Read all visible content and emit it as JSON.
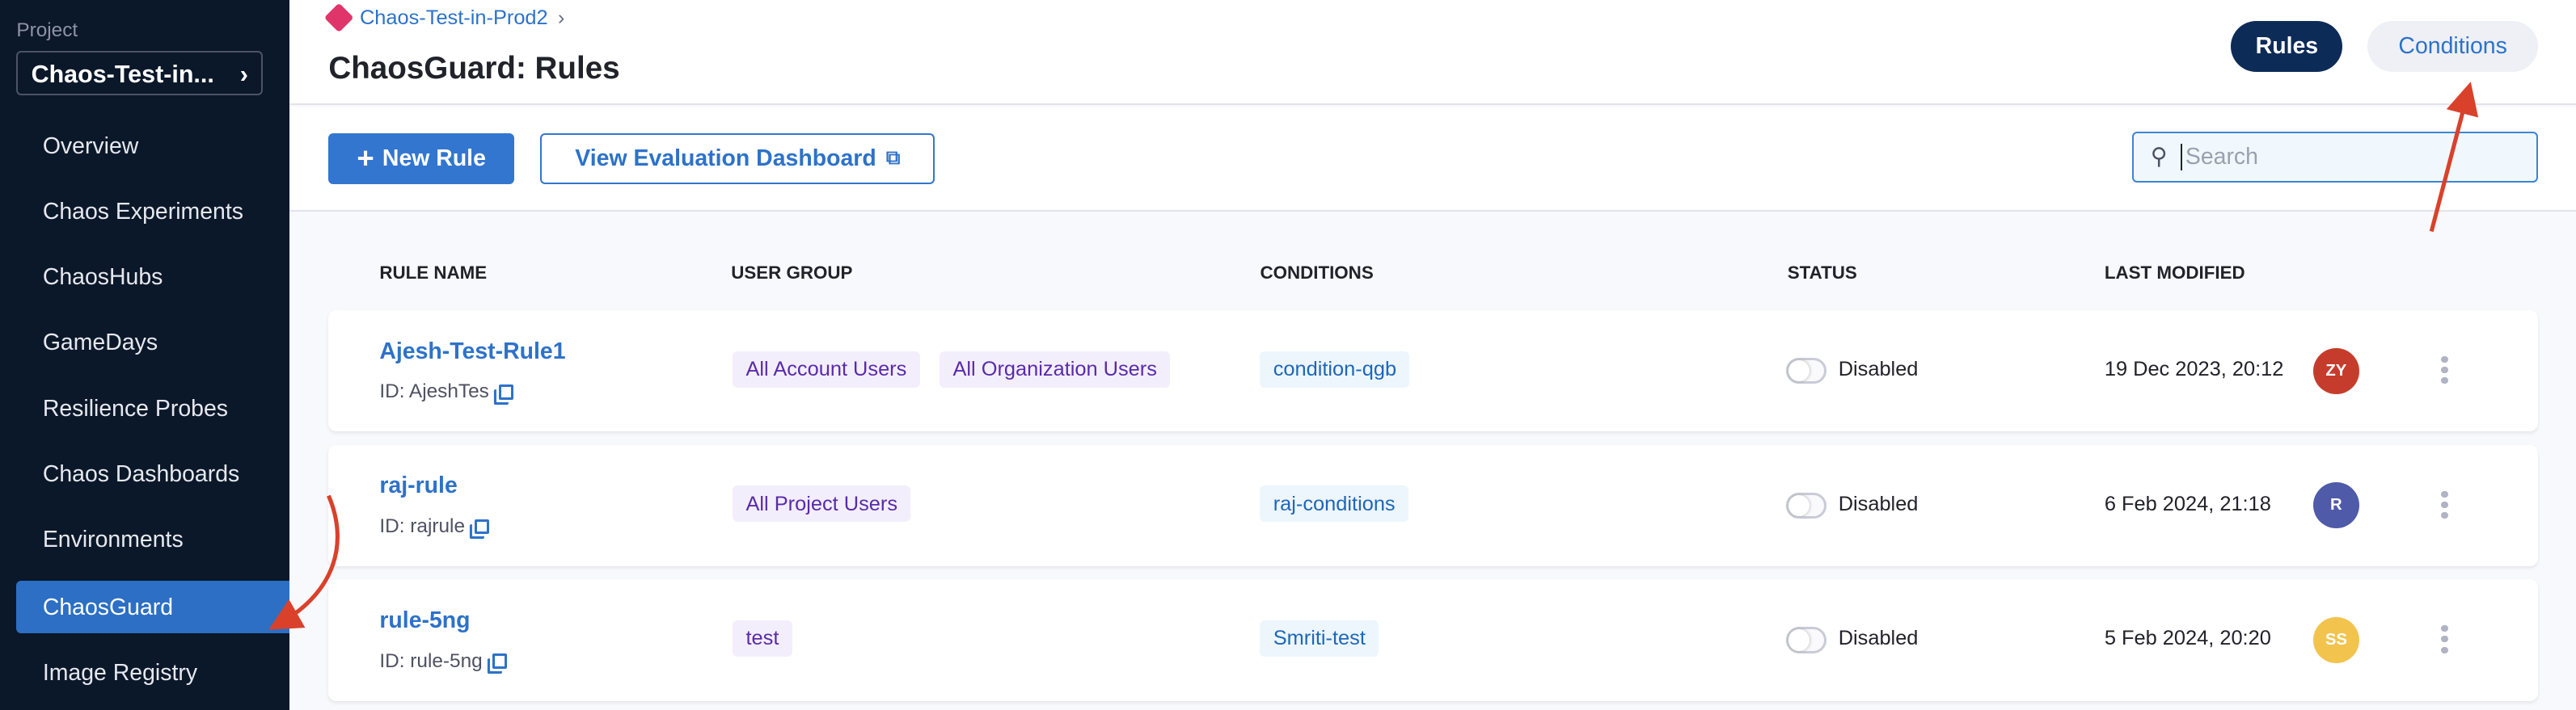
{
  "sidebar": {
    "project_label": "Project",
    "project_name": "Chaos-Test-in...",
    "items": [
      {
        "label": "Overview"
      },
      {
        "label": "Chaos Experiments"
      },
      {
        "label": "ChaosHubs"
      },
      {
        "label": "GameDays"
      },
      {
        "label": "Resilience Probes"
      },
      {
        "label": "Chaos Dashboards"
      },
      {
        "label": "Environments"
      },
      {
        "label": "ChaosGuard",
        "active": true
      },
      {
        "label": "Image Registry"
      }
    ]
  },
  "header": {
    "breadcrumb": "Chaos-Test-in-Prod2",
    "title": "ChaosGuard: Rules",
    "tabs": [
      {
        "label": "Rules",
        "active": true
      },
      {
        "label": "Conditions"
      }
    ]
  },
  "toolbar": {
    "new_rule": "New Rule",
    "view_dashboard": "View Evaluation Dashboard",
    "search_placeholder": "Search"
  },
  "table": {
    "columns": [
      "RULE NAME",
      "USER GROUP",
      "CONDITIONS",
      "STATUS",
      "LAST MODIFIED"
    ],
    "rows": [
      {
        "name": "Ajesh-Test-Rule1",
        "id": "ID: AjeshTes",
        "groups": [
          "All Account Users",
          "All Organization Users"
        ],
        "condition": "condition-qgb",
        "status": "Disabled",
        "modified": "19 Dec 2023, 20:12",
        "avatar": "ZY",
        "avatar_color": "#c63c2c"
      },
      {
        "name": "raj-rule",
        "id": "ID: rajrule",
        "groups": [
          "All Project Users"
        ],
        "condition": "raj-conditions",
        "status": "Disabled",
        "modified": "6 Feb 2024, 21:18",
        "avatar": "R",
        "avatar_color": "#4f5aa8"
      },
      {
        "name": "rule-5ng",
        "id": "ID: rule-5ng",
        "groups": [
          "test"
        ],
        "condition": "Smriti-test",
        "status": "Disabled",
        "modified": "5 Feb 2024, 20:20",
        "avatar": "SS",
        "avatar_color": "#f2c44e"
      }
    ]
  },
  "colors": {
    "sidebar_bg": "#0b1829",
    "accent": "#3376cf",
    "annotation": "#d9412b"
  }
}
